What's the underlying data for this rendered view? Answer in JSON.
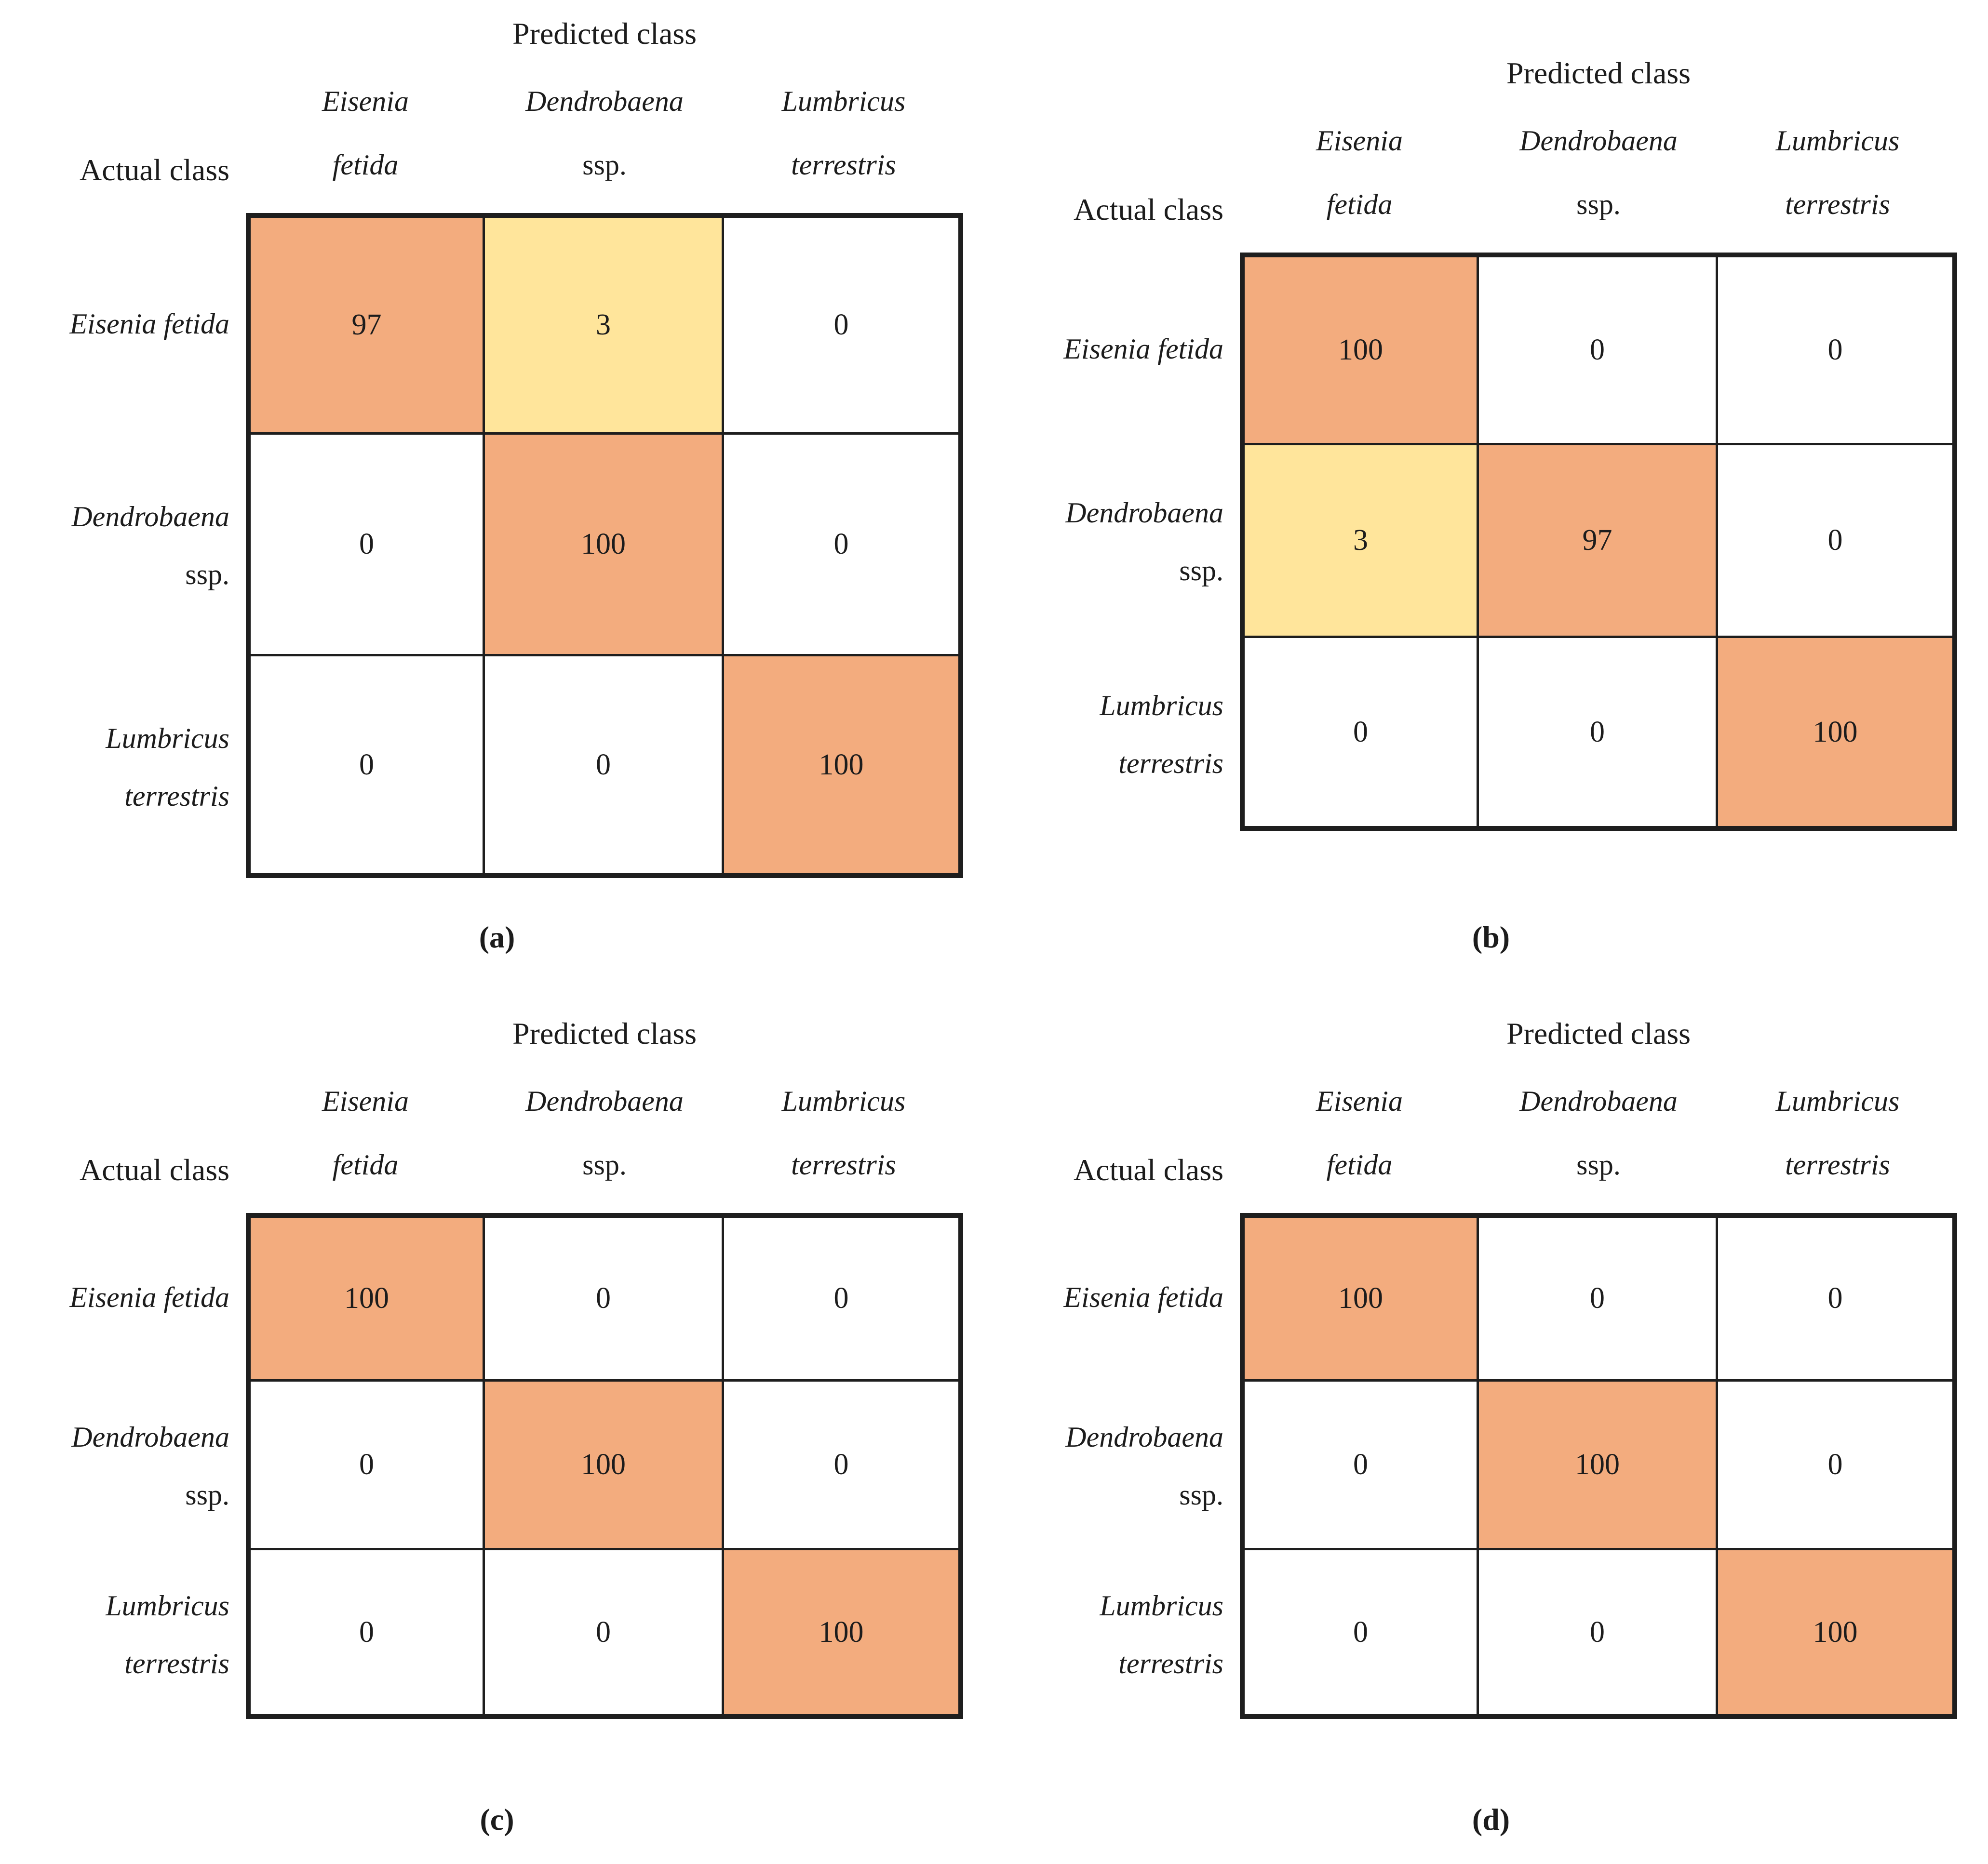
{
  "palette": {
    "orange": "#F3AC7E",
    "yellow": "#FFE59B",
    "white": "#FFFFFF",
    "border": "#1E1E1E",
    "text": "#1C1C1C"
  },
  "figure": {
    "predicted_label": "Predicted class",
    "actual_label": "Actual class",
    "col_headers": [
      [
        {
          "text": "Eisenia",
          "italic": true
        },
        {
          "text": "fetida",
          "italic": true
        }
      ],
      [
        {
          "text": "Dendrobaena",
          "italic": true
        },
        {
          "text": "ssp.",
          "italic": false
        }
      ],
      [
        {
          "text": "Lumbricus",
          "italic": true
        },
        {
          "text": "terrestris",
          "italic": true
        }
      ]
    ],
    "row_headers": [
      [
        {
          "text": "Eisenia fetida",
          "italic": true
        }
      ],
      [
        {
          "text": "Dendrobaena",
          "italic": true
        },
        {
          "text": "ssp.",
          "italic": false
        }
      ],
      [
        {
          "text": "Lumbricus",
          "italic": true
        },
        {
          "text": "terrestris",
          "italic": true
        }
      ]
    ],
    "panels": [
      {
        "id": "a",
        "caption": "(a)",
        "cell_colors": [
          [
            "orange",
            "yellow",
            "white"
          ],
          [
            "white",
            "orange",
            "white"
          ],
          [
            "white",
            "white",
            "orange"
          ]
        ]
      },
      {
        "id": "b",
        "caption": "(b)",
        "cell_colors": [
          [
            "orange",
            "white",
            "white"
          ],
          [
            "yellow",
            "orange",
            "white"
          ],
          [
            "white",
            "white",
            "orange"
          ]
        ]
      },
      {
        "id": "c",
        "caption": "(c)",
        "cell_colors": [
          [
            "orange",
            "white",
            "white"
          ],
          [
            "white",
            "orange",
            "white"
          ],
          [
            "white",
            "white",
            "orange"
          ]
        ]
      },
      {
        "id": "d",
        "caption": "(d)",
        "cell_colors": [
          [
            "orange",
            "white",
            "white"
          ],
          [
            "white",
            "orange",
            "white"
          ],
          [
            "white",
            "white",
            "orange"
          ]
        ]
      }
    ]
  },
  "chart_data": [
    {
      "type": "heatmap",
      "panel": "(a)",
      "xlabel": "Predicted class",
      "ylabel": "Actual class",
      "x_categories": [
        "Eisenia fetida",
        "Dendrobaena ssp.",
        "Lumbricus terrestris"
      ],
      "y_categories": [
        "Eisenia fetida",
        "Dendrobaena ssp.",
        "Lumbricus terrestris"
      ],
      "values": [
        [
          97,
          3,
          0
        ],
        [
          0,
          100,
          0
        ],
        [
          0,
          0,
          100
        ]
      ],
      "value_range": [
        0,
        100
      ],
      "legend": "none",
      "grid": "on"
    },
    {
      "type": "heatmap",
      "panel": "(b)",
      "xlabel": "Predicted class",
      "ylabel": "Actual class",
      "x_categories": [
        "Eisenia fetida",
        "Dendrobaena ssp.",
        "Lumbricus terrestris"
      ],
      "y_categories": [
        "Eisenia fetida",
        "Dendrobaena ssp.",
        "Lumbricus terrestris"
      ],
      "values": [
        [
          100,
          0,
          0
        ],
        [
          3,
          97,
          0
        ],
        [
          0,
          0,
          100
        ]
      ],
      "value_range": [
        0,
        100
      ],
      "legend": "none",
      "grid": "on"
    },
    {
      "type": "heatmap",
      "panel": "(c)",
      "xlabel": "Predicted class",
      "ylabel": "Actual class",
      "x_categories": [
        "Eisenia fetida",
        "Dendrobaena ssp.",
        "Lumbricus terrestris"
      ],
      "y_categories": [
        "Eisenia fetida",
        "Dendrobaena ssp.",
        "Lumbricus terrestris"
      ],
      "values": [
        [
          100,
          0,
          0
        ],
        [
          0,
          100,
          0
        ],
        [
          0,
          0,
          100
        ]
      ],
      "value_range": [
        0,
        100
      ],
      "legend": "none",
      "grid": "on"
    },
    {
      "type": "heatmap",
      "panel": "(d)",
      "xlabel": "Predicted class",
      "ylabel": "Actual class",
      "x_categories": [
        "Eisenia fetida",
        "Dendrobaena ssp.",
        "Lumbricus terrestris"
      ],
      "y_categories": [
        "Eisenia fetida",
        "Dendrobaena ssp.",
        "Lumbricus terrestris"
      ],
      "values": [
        [
          100,
          0,
          0
        ],
        [
          0,
          100,
          0
        ],
        [
          0,
          0,
          100
        ]
      ],
      "value_range": [
        0,
        100
      ],
      "legend": "none",
      "grid": "on"
    }
  ]
}
